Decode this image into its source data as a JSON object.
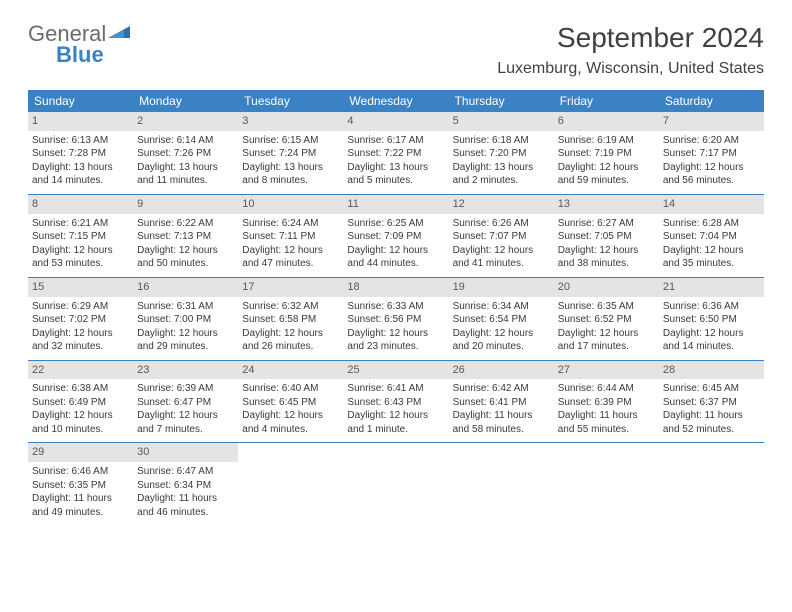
{
  "brand": {
    "word1": "General",
    "word2": "Blue"
  },
  "title": "September 2024",
  "location": "Luxemburg, Wisconsin, United States",
  "colors": {
    "header_bg": "#3b82c4",
    "header_text": "#ffffff",
    "daynum_bg": "#e4e4e4",
    "text": "#3a3a3a",
    "rule": "#3b82c4"
  },
  "dayNames": [
    "Sunday",
    "Monday",
    "Tuesday",
    "Wednesday",
    "Thursday",
    "Friday",
    "Saturday"
  ],
  "weeks": [
    [
      {
        "n": "1",
        "sunrise": "6:13 AM",
        "sunset": "7:28 PM",
        "day": "13 hours and 14 minutes."
      },
      {
        "n": "2",
        "sunrise": "6:14 AM",
        "sunset": "7:26 PM",
        "day": "13 hours and 11 minutes."
      },
      {
        "n": "3",
        "sunrise": "6:15 AM",
        "sunset": "7:24 PM",
        "day": "13 hours and 8 minutes."
      },
      {
        "n": "4",
        "sunrise": "6:17 AM",
        "sunset": "7:22 PM",
        "day": "13 hours and 5 minutes."
      },
      {
        "n": "5",
        "sunrise": "6:18 AM",
        "sunset": "7:20 PM",
        "day": "13 hours and 2 minutes."
      },
      {
        "n": "6",
        "sunrise": "6:19 AM",
        "sunset": "7:19 PM",
        "day": "12 hours and 59 minutes."
      },
      {
        "n": "7",
        "sunrise": "6:20 AM",
        "sunset": "7:17 PM",
        "day": "12 hours and 56 minutes."
      }
    ],
    [
      {
        "n": "8",
        "sunrise": "6:21 AM",
        "sunset": "7:15 PM",
        "day": "12 hours and 53 minutes."
      },
      {
        "n": "9",
        "sunrise": "6:22 AM",
        "sunset": "7:13 PM",
        "day": "12 hours and 50 minutes."
      },
      {
        "n": "10",
        "sunrise": "6:24 AM",
        "sunset": "7:11 PM",
        "day": "12 hours and 47 minutes."
      },
      {
        "n": "11",
        "sunrise": "6:25 AM",
        "sunset": "7:09 PM",
        "day": "12 hours and 44 minutes."
      },
      {
        "n": "12",
        "sunrise": "6:26 AM",
        "sunset": "7:07 PM",
        "day": "12 hours and 41 minutes."
      },
      {
        "n": "13",
        "sunrise": "6:27 AM",
        "sunset": "7:05 PM",
        "day": "12 hours and 38 minutes."
      },
      {
        "n": "14",
        "sunrise": "6:28 AM",
        "sunset": "7:04 PM",
        "day": "12 hours and 35 minutes."
      }
    ],
    [
      {
        "n": "15",
        "sunrise": "6:29 AM",
        "sunset": "7:02 PM",
        "day": "12 hours and 32 minutes."
      },
      {
        "n": "16",
        "sunrise": "6:31 AM",
        "sunset": "7:00 PM",
        "day": "12 hours and 29 minutes."
      },
      {
        "n": "17",
        "sunrise": "6:32 AM",
        "sunset": "6:58 PM",
        "day": "12 hours and 26 minutes."
      },
      {
        "n": "18",
        "sunrise": "6:33 AM",
        "sunset": "6:56 PM",
        "day": "12 hours and 23 minutes."
      },
      {
        "n": "19",
        "sunrise": "6:34 AM",
        "sunset": "6:54 PM",
        "day": "12 hours and 20 minutes."
      },
      {
        "n": "20",
        "sunrise": "6:35 AM",
        "sunset": "6:52 PM",
        "day": "12 hours and 17 minutes."
      },
      {
        "n": "21",
        "sunrise": "6:36 AM",
        "sunset": "6:50 PM",
        "day": "12 hours and 14 minutes."
      }
    ],
    [
      {
        "n": "22",
        "sunrise": "6:38 AM",
        "sunset": "6:49 PM",
        "day": "12 hours and 10 minutes."
      },
      {
        "n": "23",
        "sunrise": "6:39 AM",
        "sunset": "6:47 PM",
        "day": "12 hours and 7 minutes."
      },
      {
        "n": "24",
        "sunrise": "6:40 AM",
        "sunset": "6:45 PM",
        "day": "12 hours and 4 minutes."
      },
      {
        "n": "25",
        "sunrise": "6:41 AM",
        "sunset": "6:43 PM",
        "day": "12 hours and 1 minute."
      },
      {
        "n": "26",
        "sunrise": "6:42 AM",
        "sunset": "6:41 PM",
        "day": "11 hours and 58 minutes."
      },
      {
        "n": "27",
        "sunrise": "6:44 AM",
        "sunset": "6:39 PM",
        "day": "11 hours and 55 minutes."
      },
      {
        "n": "28",
        "sunrise": "6:45 AM",
        "sunset": "6:37 PM",
        "day": "11 hours and 52 minutes."
      }
    ],
    [
      {
        "n": "29",
        "sunrise": "6:46 AM",
        "sunset": "6:35 PM",
        "day": "11 hours and 49 minutes."
      },
      {
        "n": "30",
        "sunrise": "6:47 AM",
        "sunset": "6:34 PM",
        "day": "11 hours and 46 minutes."
      },
      null,
      null,
      null,
      null,
      null
    ]
  ],
  "labels": {
    "sunrise": "Sunrise: ",
    "sunset": "Sunset: ",
    "daylight": "Daylight: "
  }
}
